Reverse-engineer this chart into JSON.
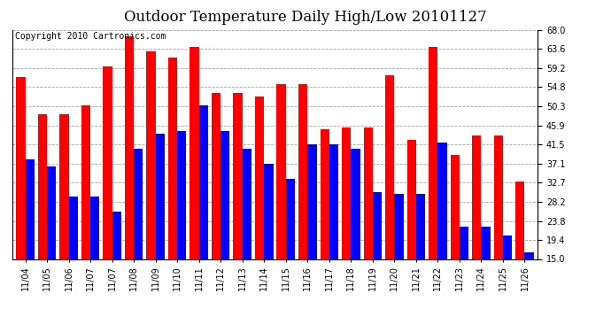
{
  "title": "Outdoor Temperature Daily High/Low 20101127",
  "copyright": "Copyright 2010 Cartronics.com",
  "date_labels": [
    "11/04",
    "11/05",
    "11/06",
    "11/07",
    "11/07",
    "11/08",
    "11/09",
    "11/10",
    "11/11",
    "11/12",
    "11/13",
    "11/14",
    "11/15",
    "11/16",
    "11/17",
    "11/18",
    "11/19",
    "11/20",
    "11/21",
    "11/22",
    "11/23",
    "11/24",
    "11/25",
    "11/26"
  ],
  "highs": [
    57.0,
    48.5,
    48.5,
    50.5,
    59.5,
    66.5,
    63.0,
    61.5,
    64.0,
    53.5,
    53.5,
    52.5,
    55.5,
    55.5,
    45.0,
    45.5,
    45.5,
    57.5,
    42.5,
    64.0,
    39.0,
    43.5,
    43.5,
    33.0
  ],
  "lows": [
    38.0,
    36.5,
    29.5,
    29.5,
    26.0,
    40.5,
    44.0,
    44.5,
    50.5,
    44.5,
    40.5,
    37.0,
    33.5,
    41.5,
    41.5,
    40.5,
    30.5,
    30.0,
    30.0,
    42.0,
    22.5,
    22.5,
    20.5,
    16.5
  ],
  "high_color": "#ff0000",
  "low_color": "#0000ff",
  "bg_color": "#ffffff",
  "grid_color": "#999999",
  "ylim_min": 15.0,
  "ylim_max": 68.0,
  "yticks": [
    15.0,
    19.4,
    23.8,
    28.2,
    32.7,
    37.1,
    41.5,
    45.9,
    50.3,
    54.8,
    59.2,
    63.6,
    68.0
  ],
  "title_fontsize": 12,
  "tick_fontsize": 7,
  "copyright_fontsize": 7
}
